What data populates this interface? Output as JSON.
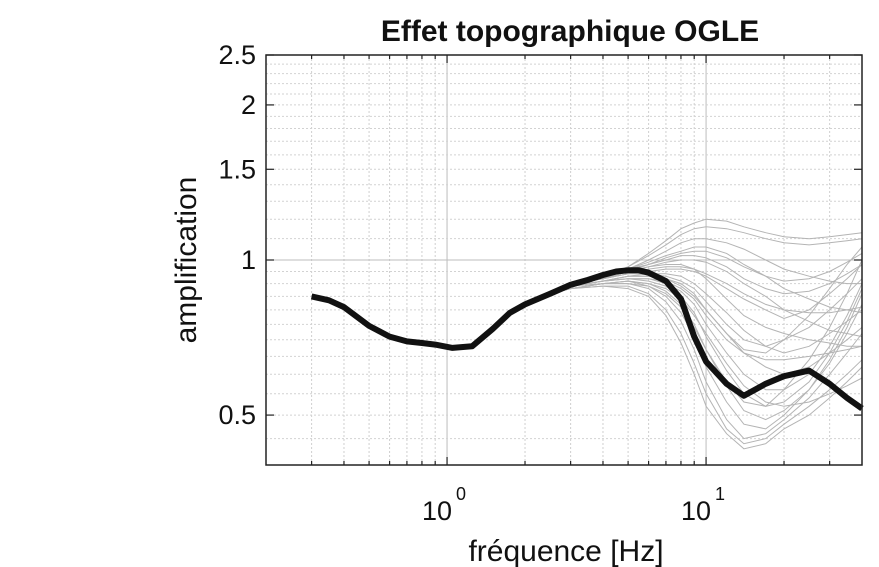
{
  "chart_data": {
    "type": "line",
    "title": "Effet topographique OGLE",
    "xlabel": "fréquence [Hz]",
    "ylabel": "amplification",
    "xscale": "log",
    "yscale": "log",
    "xlim": [
      0.2,
      40
    ],
    "ylim": [
      0.4,
      2.5
    ],
    "grid": true,
    "x_ticks": [
      {
        "value": 1,
        "base": "10",
        "exp": "0"
      },
      {
        "value": 10,
        "base": "10",
        "exp": "1"
      }
    ],
    "y_ticks": [
      {
        "value": 0.5,
        "label": "0.5"
      },
      {
        "value": 1,
        "label": "1"
      },
      {
        "value": 1.5,
        "label": "1.5"
      },
      {
        "value": 2,
        "label": "2"
      },
      {
        "value": 2.5,
        "label": "2.5"
      }
    ],
    "main_series": {
      "color": "#111111",
      "x": [
        0.3,
        0.35,
        0.4,
        0.5,
        0.6,
        0.7,
        0.8,
        0.9,
        1.05,
        1.25,
        1.5,
        1.75,
        2.0,
        2.5,
        3.0,
        3.5,
        4.0,
        4.5,
        5.0,
        5.5,
        6.0,
        7.0,
        8.0,
        9.0,
        10.0,
        12.0,
        14.0,
        17.0,
        20.0,
        25.0,
        30.0,
        35.0,
        40.0
      ],
      "y": [
        0.85,
        0.835,
        0.81,
        0.745,
        0.71,
        0.695,
        0.69,
        0.685,
        0.675,
        0.68,
        0.735,
        0.79,
        0.82,
        0.86,
        0.895,
        0.915,
        0.935,
        0.95,
        0.955,
        0.955,
        0.945,
        0.91,
        0.84,
        0.71,
        0.635,
        0.575,
        0.545,
        0.575,
        0.595,
        0.61,
        0.575,
        0.54,
        0.515
      ]
    },
    "background_series": {
      "color": "#b4b4b4",
      "x": [
        3.0,
        4.0,
        5.0,
        6.0,
        7.0,
        8.0,
        9.0,
        10.0,
        12.0,
        14.0,
        17.0,
        20.0,
        25.0,
        30.0,
        35.0,
        40.0
      ],
      "curves": [
        [
          0.9,
          0.93,
          0.97,
          1.03,
          1.09,
          1.15,
          1.18,
          1.2,
          1.19,
          1.16,
          1.13,
          1.11,
          1.1,
          1.11,
          1.12,
          1.13
        ],
        [
          0.9,
          0.93,
          0.97,
          1.02,
          1.07,
          1.12,
          1.15,
          1.16,
          1.15,
          1.13,
          1.1,
          1.08,
          1.07,
          1.08,
          1.09,
          1.1
        ],
        [
          0.9,
          0.93,
          0.96,
          1.0,
          1.04,
          1.08,
          1.1,
          1.1,
          1.08,
          1.05,
          1.0,
          0.96,
          0.93,
          0.91,
          0.9,
          0.9
        ],
        [
          0.9,
          0.93,
          0.96,
          0.99,
          1.02,
          1.04,
          1.06,
          1.06,
          1.03,
          0.98,
          0.93,
          0.88,
          0.84,
          0.81,
          0.8,
          0.79
        ],
        [
          0.9,
          0.92,
          0.95,
          0.97,
          0.99,
          1.0,
          1.0,
          0.99,
          0.95,
          0.9,
          0.85,
          0.8,
          0.76,
          0.73,
          0.72,
          0.71
        ],
        [
          0.9,
          0.92,
          0.94,
          0.95,
          0.96,
          0.96,
          0.95,
          0.93,
          0.88,
          0.84,
          0.8,
          0.77,
          0.8,
          0.86,
          0.92,
          0.98
        ],
        [
          0.9,
          0.92,
          0.94,
          0.94,
          0.94,
          0.93,
          0.9,
          0.86,
          0.79,
          0.73,
          0.68,
          0.66,
          0.68,
          0.72,
          0.76,
          0.8
        ],
        [
          0.89,
          0.91,
          0.93,
          0.93,
          0.92,
          0.9,
          0.86,
          0.8,
          0.72,
          0.66,
          0.62,
          0.6,
          0.62,
          0.66,
          0.7,
          0.74
        ],
        [
          0.89,
          0.91,
          0.92,
          0.92,
          0.9,
          0.87,
          0.82,
          0.75,
          0.66,
          0.6,
          0.56,
          0.56,
          0.6,
          0.68,
          0.78,
          0.9
        ],
        [
          0.89,
          0.91,
          0.92,
          0.91,
          0.89,
          0.85,
          0.79,
          0.71,
          0.61,
          0.55,
          0.52,
          0.53,
          0.58,
          0.66,
          0.76,
          0.88
        ],
        [
          0.89,
          0.9,
          0.91,
          0.9,
          0.87,
          0.82,
          0.75,
          0.67,
          0.57,
          0.51,
          0.49,
          0.51,
          0.56,
          0.63,
          0.72,
          0.82
        ],
        [
          0.88,
          0.9,
          0.9,
          0.89,
          0.85,
          0.79,
          0.71,
          0.62,
          0.53,
          0.48,
          0.47,
          0.5,
          0.56,
          0.64,
          0.74,
          0.86
        ],
        [
          0.88,
          0.9,
          0.9,
          0.88,
          0.83,
          0.76,
          0.67,
          0.58,
          0.49,
          0.45,
          0.46,
          0.49,
          0.54,
          0.6,
          0.66,
          0.72
        ],
        [
          0.88,
          0.89,
          0.89,
          0.86,
          0.8,
          0.72,
          0.63,
          0.55,
          0.47,
          0.44,
          0.45,
          0.48,
          0.52,
          0.56,
          0.6,
          0.64
        ],
        [
          0.88,
          0.89,
          0.88,
          0.85,
          0.78,
          0.69,
          0.6,
          0.52,
          0.46,
          0.43,
          0.44,
          0.47,
          0.5,
          0.54,
          0.58,
          0.62
        ],
        [
          0.89,
          0.91,
          0.92,
          0.92,
          0.91,
          0.88,
          0.84,
          0.78,
          0.7,
          0.66,
          0.64,
          0.64,
          0.65,
          0.66,
          0.67,
          0.68
        ],
        [
          0.9,
          0.92,
          0.95,
          0.97,
          0.98,
          0.98,
          0.96,
          0.92,
          0.84,
          0.78,
          0.74,
          0.72,
          0.7,
          0.69,
          0.68,
          0.68
        ],
        [
          0.9,
          0.93,
          0.96,
          0.98,
          1.0,
          1.02,
          1.02,
          1.01,
          0.97,
          0.92,
          0.88,
          0.86,
          0.87,
          0.9,
          0.94,
          0.98
        ],
        [
          0.89,
          0.91,
          0.93,
          0.94,
          0.93,
          0.91,
          0.88,
          0.83,
          0.75,
          0.7,
          0.68,
          0.7,
          0.74,
          0.8,
          0.86,
          0.92
        ],
        [
          0.88,
          0.9,
          0.91,
          0.9,
          0.88,
          0.84,
          0.78,
          0.72,
          0.63,
          0.57,
          0.53,
          0.52,
          0.53,
          0.55,
          0.57,
          0.59
        ],
        [
          0.9,
          0.92,
          0.94,
          0.96,
          0.97,
          0.97,
          0.96,
          0.94,
          0.9,
          0.86,
          0.82,
          0.8,
          0.79,
          0.79,
          0.8,
          0.81
        ],
        [
          0.89,
          0.91,
          0.93,
          0.93,
          0.92,
          0.89,
          0.85,
          0.8,
          0.72,
          0.67,
          0.66,
          0.7,
          0.78,
          0.88,
          0.98,
          1.06
        ],
        [
          0.88,
          0.9,
          0.91,
          0.89,
          0.86,
          0.81,
          0.74,
          0.67,
          0.58,
          0.53,
          0.52,
          0.56,
          0.64,
          0.74,
          0.86,
          1.0
        ],
        [
          0.9,
          0.92,
          0.95,
          0.98,
          1.01,
          1.03,
          1.04,
          1.04,
          1.01,
          0.97,
          0.93,
          0.91,
          0.92,
          0.95,
          0.99,
          1.03
        ]
      ]
    }
  }
}
